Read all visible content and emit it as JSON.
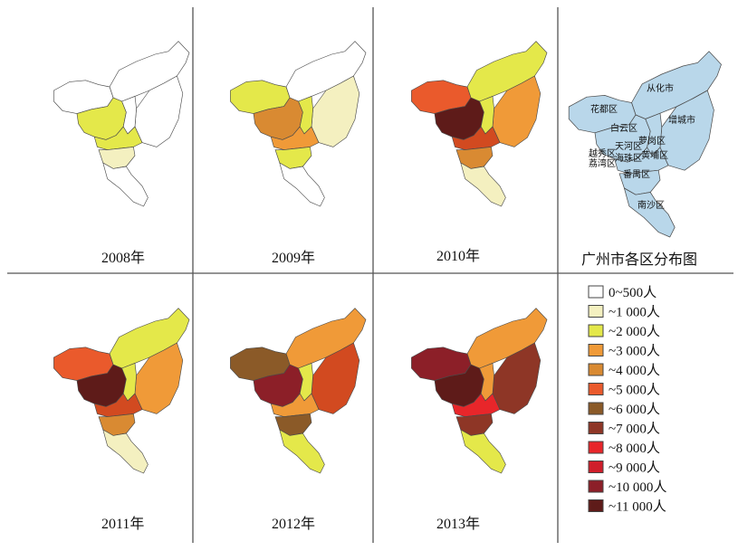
{
  "colors": {
    "c0": "#ffffff",
    "c1": "#f4f0c0",
    "c2": "#e4e84a",
    "c3": "#f09a38",
    "c4": "#d98a32",
    "c5": "#ea5a2c",
    "c6": "#d24a20",
    "c7": "#8b5a28",
    "c8": "#8e3626",
    "c9": "#e8262a",
    "c10": "#cf1e2a",
    "c11": "#8c1f28",
    "c12": "#5e1b19",
    "ref": "#b9d7ea"
  },
  "panels": [
    {
      "id": "p2008",
      "label": "2008年",
      "fills": {
        "conghua": "c0",
        "zengcheng": "c0",
        "huadu": "c0",
        "baiyun": "c2",
        "core": "c2",
        "luogang": "c0",
        "panyu": "c1",
        "nansha": "c0"
      }
    },
    {
      "id": "p2009",
      "label": "2009年",
      "fills": {
        "conghua": "c0",
        "zengcheng": "c1",
        "huadu": "c2",
        "baiyun": "c4",
        "core": "c3",
        "luogang": "c2",
        "panyu": "c2",
        "nansha": "c0"
      }
    },
    {
      "id": "p2010",
      "label": "2010年",
      "fills": {
        "conghua": "c2",
        "zengcheng": "c3",
        "huadu": "c5",
        "baiyun": "c12",
        "core": "c6",
        "luogang": "c2",
        "panyu": "c4",
        "nansha": "c1"
      }
    },
    {
      "id": "p2011",
      "label": "2011年",
      "fills": {
        "conghua": "c2",
        "zengcheng": "c3",
        "huadu": "c5",
        "baiyun": "c12",
        "core": "c6",
        "luogang": "c2",
        "panyu": "c4",
        "nansha": "c1"
      }
    },
    {
      "id": "p2012",
      "label": "2012年",
      "fills": {
        "conghua": "c3",
        "zengcheng": "c6",
        "huadu": "c7",
        "baiyun": "c11",
        "core": "c3",
        "luogang": "c2",
        "panyu": "c7",
        "nansha": "c2"
      }
    },
    {
      "id": "p2013",
      "label": "2013年",
      "fills": {
        "conghua": "c3",
        "zengcheng": "c8",
        "huadu": "c11",
        "baiyun": "c12",
        "core": "c9",
        "luogang": "c3",
        "panyu": "c8",
        "nansha": "c2"
      }
    }
  ],
  "reference_map": {
    "title": "广州市各区分布图",
    "districts": [
      {
        "id": "conghua",
        "name": "从化市"
      },
      {
        "id": "huadu",
        "name": "花都区"
      },
      {
        "id": "zengcheng",
        "name": "增城市"
      },
      {
        "id": "baiyun",
        "name": "白云区"
      },
      {
        "id": "luogang",
        "name": "萝岗区"
      },
      {
        "id": "tianhe",
        "name": "天河区"
      },
      {
        "id": "yuexiu",
        "name": "越秀区"
      },
      {
        "id": "huangpu",
        "name": "黄埔区"
      },
      {
        "id": "liwan",
        "name": "荔湾区"
      },
      {
        "id": "haizhu",
        "name": "海珠区"
      },
      {
        "id": "panyu",
        "name": "番禺区"
      },
      {
        "id": "nansha",
        "name": "南沙区"
      }
    ]
  },
  "legend": [
    {
      "label": "0~500人",
      "color": "c0"
    },
    {
      "label": "~1 000人",
      "color": "c1"
    },
    {
      "label": "~2 000人",
      "color": "c2"
    },
    {
      "label": "~3 000人",
      "color": "c3"
    },
    {
      "label": "~4 000人",
      "color": "c4"
    },
    {
      "label": "~5 000人",
      "color": "c5"
    },
    {
      "label": "~6 000人",
      "color": "c7"
    },
    {
      "label": "~7 000人",
      "color": "c8"
    },
    {
      "label": "~8 000人",
      "color": "c9"
    },
    {
      "label": "~9 000人",
      "color": "c10"
    },
    {
      "label": "~10 000人",
      "color": "c11"
    },
    {
      "label": "~11 000人",
      "color": "c12"
    }
  ]
}
